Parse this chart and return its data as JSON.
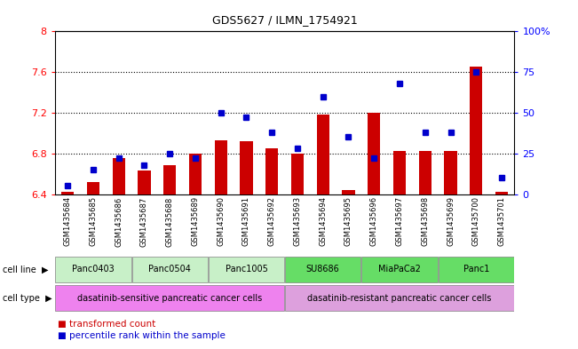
{
  "title": "GDS5627 / ILMN_1754921",
  "samples": [
    "GSM1435684",
    "GSM1435685",
    "GSM1435686",
    "GSM1435687",
    "GSM1435688",
    "GSM1435689",
    "GSM1435690",
    "GSM1435691",
    "GSM1435692",
    "GSM1435693",
    "GSM1435694",
    "GSM1435695",
    "GSM1435696",
    "GSM1435697",
    "GSM1435698",
    "GSM1435699",
    "GSM1435700",
    "GSM1435701"
  ],
  "bar_values": [
    6.42,
    6.52,
    6.75,
    6.63,
    6.68,
    6.8,
    6.93,
    6.92,
    6.85,
    6.8,
    7.18,
    6.44,
    7.2,
    6.82,
    6.82,
    6.82,
    7.65,
    6.42
  ],
  "dot_values": [
    5,
    15,
    22,
    18,
    25,
    22,
    50,
    47,
    38,
    28,
    60,
    35,
    22,
    68,
    38,
    38,
    75,
    10
  ],
  "ylim_left": [
    6.4,
    8.0
  ],
  "ylim_right": [
    0,
    100
  ],
  "yticks_left": [
    6.4,
    6.8,
    7.2,
    7.6,
    8.0
  ],
  "yticks_right": [
    0,
    25,
    50,
    75,
    100
  ],
  "ytick_labels_left": [
    "6.4",
    "6.8",
    "7.2",
    "7.6",
    "8"
  ],
  "ytick_labels_right": [
    "0",
    "25",
    "50",
    "75",
    "100%"
  ],
  "bar_color": "#cc0000",
  "dot_color": "#0000cc",
  "cell_lines": [
    {
      "label": "Panc0403",
      "start": 0,
      "end": 2,
      "color": "#c8f0c8"
    },
    {
      "label": "Panc0504",
      "start": 3,
      "end": 5,
      "color": "#c8f0c8"
    },
    {
      "label": "Panc1005",
      "start": 6,
      "end": 8,
      "color": "#c8f0c8"
    },
    {
      "label": "SU8686",
      "start": 9,
      "end": 11,
      "color": "#66dd66"
    },
    {
      "label": "MiaPaCa2",
      "start": 12,
      "end": 14,
      "color": "#66dd66"
    },
    {
      "label": "Panc1",
      "start": 15,
      "end": 17,
      "color": "#66dd66"
    }
  ],
  "cell_types": [
    {
      "label": "dasatinib-sensitive pancreatic cancer cells",
      "start": 0,
      "end": 8,
      "color": "#ee82ee"
    },
    {
      "label": "dasatinib-resistant pancreatic cancer cells",
      "start": 9,
      "end": 17,
      "color": "#dda0dd"
    }
  ],
  "legend_bar_label": "transformed count",
  "legend_dot_label": "percentile rank within the sample",
  "cell_line_row_label": "cell line",
  "cell_type_row_label": "cell type",
  "bg_color": "#ffffff",
  "tick_row_color": "#d3d3d3",
  "grid_yticks": [
    6.8,
    7.2,
    7.6
  ]
}
